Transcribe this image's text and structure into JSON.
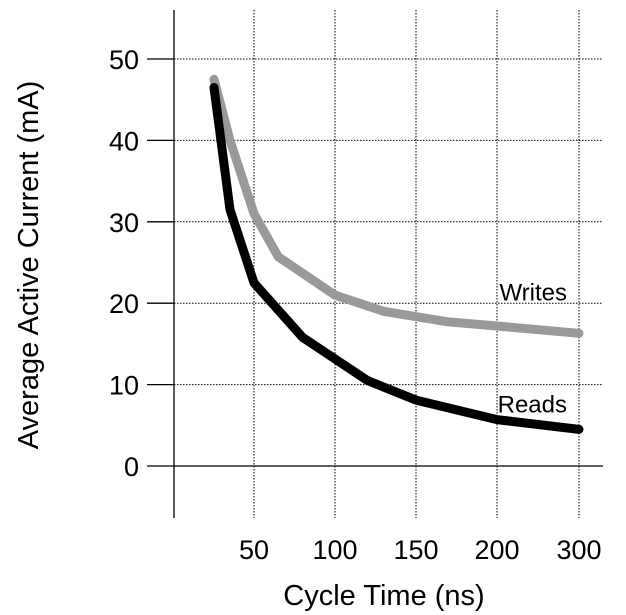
{
  "chart_data": {
    "type": "line",
    "title": "",
    "xlabel": "Cycle Time (ns)",
    "ylabel": "Average Active Current (mA)",
    "x_ticks": [
      50,
      100,
      150,
      200,
      300
    ],
    "y_ticks": [
      0,
      10,
      20,
      30,
      40,
      50
    ],
    "ylim": [
      -8,
      56
    ],
    "grid": true,
    "series": [
      {
        "name": "Writes",
        "color": "#999999",
        "points": [
          [
            25,
            47.5
          ],
          [
            35,
            40
          ],
          [
            50,
            31
          ],
          [
            65,
            25.7
          ],
          [
            100,
            21
          ],
          [
            130,
            19
          ],
          [
            170,
            17.7
          ],
          [
            200,
            17.2
          ],
          [
            300,
            16.3
          ]
        ]
      },
      {
        "name": "Reads",
        "color": "#000000",
        "points": [
          [
            25,
            46.5
          ],
          [
            35,
            31.5
          ],
          [
            50,
            22.5
          ],
          [
            80,
            15.8
          ],
          [
            120,
            10.5
          ],
          [
            150,
            8.1
          ],
          [
            200,
            5.7
          ],
          [
            300,
            4.5
          ]
        ]
      }
    ]
  }
}
